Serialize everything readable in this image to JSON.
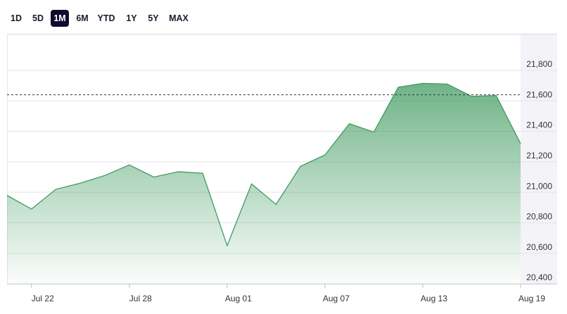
{
  "chart_data": {
    "type": "area",
    "range_buttons": [
      "1D",
      "5D",
      "1M",
      "6M",
      "YTD",
      "1Y",
      "5Y",
      "MAX"
    ],
    "selected_range": "1M",
    "categories": [
      null,
      "Jul 22",
      null,
      null,
      null,
      "Jul 28",
      null,
      null,
      null,
      "Aug 01",
      null,
      null,
      null,
      "Aug 07",
      null,
      null,
      null,
      "Aug 13",
      null,
      null,
      null,
      "Aug 19"
    ],
    "values": [
      20980,
      20890,
      21020,
      21060,
      21110,
      21180,
      21100,
      21135,
      21125,
      20650,
      21055,
      20920,
      21170,
      21245,
      21450,
      21395,
      21690,
      21715,
      21710,
      21630,
      21635,
      21320
    ],
    "color": "#3f9a5f",
    "reference_line": 21640,
    "ylim": [
      20400,
      22040
    ],
    "yticks": [
      {
        "value": 20400,
        "label": "20,400"
      },
      {
        "value": 20600,
        "label": "20,600"
      },
      {
        "value": 20800,
        "label": "20,800"
      },
      {
        "value": 21000,
        "label": "21,000"
      },
      {
        "value": 21200,
        "label": "21,200"
      },
      {
        "value": 21400,
        "label": "21,400"
      },
      {
        "value": 21600,
        "label": "21,600"
      },
      {
        "value": 21800,
        "label": "21,800"
      }
    ],
    "grid": true
  }
}
